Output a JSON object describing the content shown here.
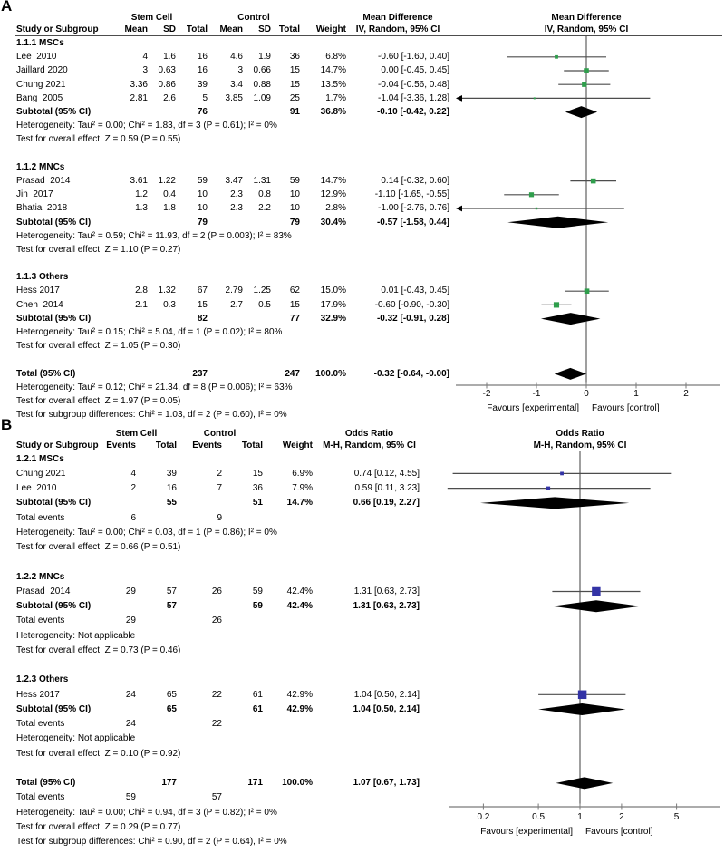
{
  "chart_data": [
    {
      "type": "forest",
      "panel_label": "A",
      "effect": "Mean Difference",
      "method": "IV, Random, 95% CI",
      "group_headers": [
        "Stem Cell",
        "Control"
      ],
      "columns": [
        "Study or Subgroup",
        "Mean",
        "SD",
        "Total",
        "Mean",
        "SD",
        "Total",
        "Weight",
        "IV, Random, 95% CI"
      ],
      "xscale": "linear",
      "xticks": [
        -2,
        -1,
        0,
        1,
        2
      ],
      "xtick_labels": [
        "-2",
        "-1",
        "0",
        "1",
        "2"
      ],
      "favours": [
        "Favours [experimental]",
        "Favours [control]"
      ],
      "marker_color": "#2f9e4c",
      "subgroups": [
        {
          "name": "1.1.1 MSCs",
          "studies": [
            {
              "study": "Lee  2010",
              "mean1": "4",
              "sd1": "1.6",
              "n1": "16",
              "mean2": "4.6",
              "sd2": "1.9",
              "n2": "36",
              "weight": "6.8%",
              "ci_text": "-0.60 [-1.60, 0.40]",
              "est": -0.6,
              "lo": -1.6,
              "hi": 0.4,
              "w": 6.8
            },
            {
              "study": "Jaillard 2020",
              "mean1": "3",
              "sd1": "0.63",
              "n1": "16",
              "mean2": "3",
              "sd2": "0.66",
              "n2": "15",
              "weight": "14.7%",
              "ci_text": "0.00 [-0.45, 0.45]",
              "est": 0.0,
              "lo": -0.45,
              "hi": 0.45,
              "w": 14.7
            },
            {
              "study": "Chung 2021",
              "mean1": "3.36",
              "sd1": "0.86",
              "n1": "39",
              "mean2": "3.4",
              "sd2": "0.88",
              "n2": "15",
              "weight": "13.5%",
              "ci_text": "-0.04 [-0.56, 0.48]",
              "est": -0.04,
              "lo": -0.56,
              "hi": 0.48,
              "w": 13.5
            },
            {
              "study": "Bang  2005",
              "mean1": "2.81",
              "sd1": "2.6",
              "n1": "5",
              "mean2": "3.85",
              "sd2": "1.09",
              "n2": "25",
              "weight": "1.7%",
              "ci_text": "-1.04 [-3.36, 1.28]",
              "est": -1.04,
              "lo": -3.36,
              "hi": 1.28,
              "w": 1.7
            }
          ],
          "subtotal": {
            "label": "Subtotal (95% CI)",
            "n1": "76",
            "n2": "91",
            "weight": "36.8%",
            "ci_text": "-0.10 [-0.42, 0.22]",
            "est": -0.1,
            "lo": -0.42,
            "hi": 0.22
          },
          "heterogeneity": "Heterogeneity: Tau² = 0.00; Chi² = 1.83, df = 3 (P = 0.61); I² = 0%",
          "overall": "Test for overall effect: Z = 0.59 (P = 0.55)"
        },
        {
          "name": "1.1.2 MNCs",
          "studies": [
            {
              "study": "Prasad  2014",
              "mean1": "3.61",
              "sd1": "1.22",
              "n1": "59",
              "mean2": "3.47",
              "sd2": "1.31",
              "n2": "59",
              "weight": "14.7%",
              "ci_text": "0.14 [-0.32, 0.60]",
              "est": 0.14,
              "lo": -0.32,
              "hi": 0.6,
              "w": 14.7
            },
            {
              "study": "Jin  2017",
              "mean1": "1.2",
              "sd1": "0.4",
              "n1": "10",
              "mean2": "2.3",
              "sd2": "0.8",
              "n2": "10",
              "weight": "12.9%",
              "ci_text": "-1.10 [-1.65, -0.55]",
              "est": -1.1,
              "lo": -1.65,
              "hi": -0.55,
              "w": 12.9
            },
            {
              "study": "Bhatia  2018",
              "mean1": "1.3",
              "sd1": "1.8",
              "n1": "10",
              "mean2": "2.3",
              "sd2": "2.2",
              "n2": "10",
              "weight": "2.8%",
              "ci_text": "-1.00 [-2.76, 0.76]",
              "est": -1.0,
              "lo": -2.76,
              "hi": 0.76,
              "w": 2.8
            }
          ],
          "subtotal": {
            "label": "Subtotal (95% CI)",
            "n1": "79",
            "n2": "79",
            "weight": "30.4%",
            "ci_text": "-0.57 [-1.58, 0.44]",
            "est": -0.57,
            "lo": -1.58,
            "hi": 0.44
          },
          "heterogeneity": "Heterogeneity: Tau² = 0.59; Chi² = 11.93, df = 2 (P = 0.003); I² = 83%",
          "overall": "Test for overall effect: Z = 1.10 (P = 0.27)"
        },
        {
          "name": "1.1.3 Others",
          "studies": [
            {
              "study": "Hess 2017",
              "mean1": "2.8",
              "sd1": "1.32",
              "n1": "67",
              "mean2": "2.79",
              "sd2": "1.25",
              "n2": "62",
              "weight": "15.0%",
              "ci_text": "0.01 [-0.43, 0.45]",
              "est": 0.01,
              "lo": -0.43,
              "hi": 0.45,
              "w": 15.0
            },
            {
              "study": "Chen  2014",
              "mean1": "2.1",
              "sd1": "0.3",
              "n1": "15",
              "mean2": "2.7",
              "sd2": "0.5",
              "n2": "15",
              "weight": "17.9%",
              "ci_text": "-0.60 [-0.90, -0.30]",
              "est": -0.6,
              "lo": -0.9,
              "hi": -0.3,
              "w": 17.9
            }
          ],
          "subtotal": {
            "label": "Subtotal (95% CI)",
            "n1": "82",
            "n2": "77",
            "weight": "32.9%",
            "ci_text": "-0.32 [-0.91, 0.28]",
            "est": -0.32,
            "lo": -0.91,
            "hi": 0.28
          },
          "heterogeneity": "Heterogeneity: Tau² = 0.15; Chi² = 5.04, df = 1 (P = 0.02); I² = 80%",
          "overall": "Test for overall effect: Z = 1.05 (P = 0.30)"
        }
      ],
      "total": {
        "label": "Total (95% CI)",
        "n1": "237",
        "n2": "247",
        "weight": "100.0%",
        "ci_text": "-0.32 [-0.64, -0.00]",
        "est": -0.32,
        "lo": -0.64,
        "hi": 0.0
      },
      "total_heterogeneity": "Heterogeneity: Tau² = 0.12; Chi² = 21.34, df = 8 (P = 0.006); I² = 63%",
      "total_overall": "Test for overall effect: Z = 1.97 (P = 0.05)",
      "subgroup_diff": "Test for subgroup differences: Chi² = 1.03, df = 2 (P = 0.60), I² = 0%"
    },
    {
      "type": "forest",
      "panel_label": "B",
      "effect": "Odds Ratio",
      "method": "M-H, Random, 95% CI",
      "group_headers": [
        "Stem Cell",
        "Control"
      ],
      "columns": [
        "Study or Subgroup",
        "Events",
        "Total",
        "Events",
        "Total",
        "Weight",
        "M-H, Random, 95% CI"
      ],
      "xscale": "log",
      "xticks": [
        0.2,
        0.5,
        1,
        2,
        5
      ],
      "xtick_labels": [
        "0.2",
        "0.5",
        "1",
        "2",
        "5"
      ],
      "favours": [
        "Favours [experimental]",
        "Favours [control]"
      ],
      "marker_color": "#3333a6",
      "total_events_label": "Total events",
      "subgroups": [
        {
          "name": "1.2.1 MSCs",
          "studies": [
            {
              "study": "Chung 2021",
              "e1": "4",
              "n1": "39",
              "e2": "2",
              "n2": "15",
              "weight": "6.9%",
              "ci_text": "0.74 [0.12, 4.55]",
              "est": 0.74,
              "lo": 0.12,
              "hi": 4.55,
              "w": 6.9
            },
            {
              "study": "Lee  2010",
              "e1": "2",
              "n1": "16",
              "e2": "7",
              "n2": "36",
              "weight": "7.9%",
              "ci_text": "0.59 [0.11, 3.23]",
              "est": 0.59,
              "lo": 0.11,
              "hi": 3.23,
              "w": 7.9
            }
          ],
          "subtotal": {
            "label": "Subtotal (95% CI)",
            "n1": "55",
            "n2": "51",
            "weight": "14.7%",
            "ci_text": "0.66 [0.19, 2.27]",
            "est": 0.66,
            "lo": 0.19,
            "hi": 2.27
          },
          "total_events": [
            "6",
            "9"
          ],
          "heterogeneity": "Heterogeneity: Tau² = 0.00; Chi² = 0.03, df = 1 (P = 0.86); I² = 0%",
          "overall": "Test for overall effect: Z = 0.66 (P = 0.51)"
        },
        {
          "name": "1.2.2 MNCs",
          "studies": [
            {
              "study": "Prasad  2014",
              "e1": "29",
              "n1": "57",
              "e2": "26",
              "n2": "59",
              "weight": "42.4%",
              "ci_text": "1.31 [0.63, 2.73]",
              "est": 1.31,
              "lo": 0.63,
              "hi": 2.73,
              "w": 42.4
            }
          ],
          "subtotal": {
            "label": "Subtotal (95% CI)",
            "n1": "57",
            "n2": "59",
            "weight": "42.4%",
            "ci_text": "1.31 [0.63, 2.73]",
            "est": 1.31,
            "lo": 0.63,
            "hi": 2.73
          },
          "total_events": [
            "29",
            "26"
          ],
          "heterogeneity": "Heterogeneity: Not applicable",
          "overall": "Test for overall effect: Z = 0.73 (P = 0.46)"
        },
        {
          "name": "1.2.3 Others",
          "studies": [
            {
              "study": "Hess 2017",
              "e1": "24",
              "n1": "65",
              "e2": "22",
              "n2": "61",
              "weight": "42.9%",
              "ci_text": "1.04 [0.50, 2.14]",
              "est": 1.04,
              "lo": 0.5,
              "hi": 2.14,
              "w": 42.9
            }
          ],
          "subtotal": {
            "label": "Subtotal (95% CI)",
            "n1": "65",
            "n2": "61",
            "weight": "42.9%",
            "ci_text": "1.04 [0.50, 2.14]",
            "est": 1.04,
            "lo": 0.5,
            "hi": 2.14
          },
          "total_events": [
            "24",
            "22"
          ],
          "heterogeneity": "Heterogeneity: Not applicable",
          "overall": "Test for overall effect: Z = 0.10 (P = 0.92)"
        }
      ],
      "total": {
        "label": "Total (95% CI)",
        "n1": "177",
        "n2": "171",
        "weight": "100.0%",
        "ci_text": "1.07 [0.67, 1.73]",
        "est": 1.07,
        "lo": 0.67,
        "hi": 1.73
      },
      "total_events": [
        "59",
        "57"
      ],
      "total_heterogeneity": "Heterogeneity: Tau² = 0.00; Chi² = 0.94, df = 3 (P = 0.82); I² = 0%",
      "total_overall": "Test for overall effect: Z = 0.29 (P = 0.77)",
      "subgroup_diff": "Test for subgroup differences: Chi² = 0.90, df = 2 (P = 0.64), I² = 0%"
    }
  ]
}
